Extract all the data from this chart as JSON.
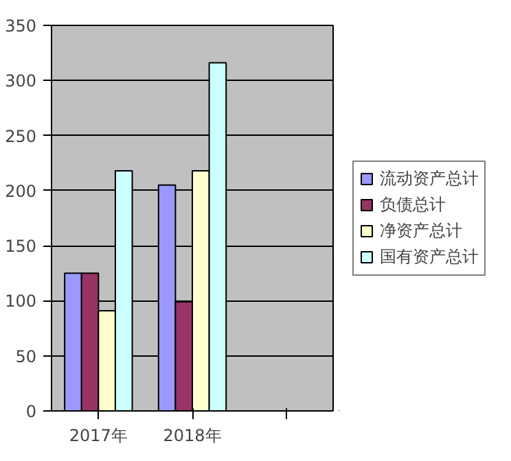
{
  "chart_data": {
    "type": "bar",
    "categories": [
      "2017年",
      "2018年",
      null
    ],
    "series": [
      {
        "name": "流动资产总计",
        "color": "#9999ff",
        "values": [
          125,
          205,
          null
        ]
      },
      {
        "name": "负债总计",
        "color": "#993366",
        "values": [
          125,
          99,
          null
        ]
      },
      {
        "name": "净资产总计",
        "color": "#ffffcc",
        "values": [
          91,
          218,
          null
        ]
      },
      {
        "name": "国有资产总计",
        "color": "#ccffff",
        "values": [
          218,
          316,
          null
        ]
      }
    ],
    "ylim": [
      0,
      350
    ],
    "yticks": [
      0,
      50,
      100,
      150,
      200,
      250,
      300,
      350
    ],
    "grid": "y",
    "legend": "right"
  }
}
